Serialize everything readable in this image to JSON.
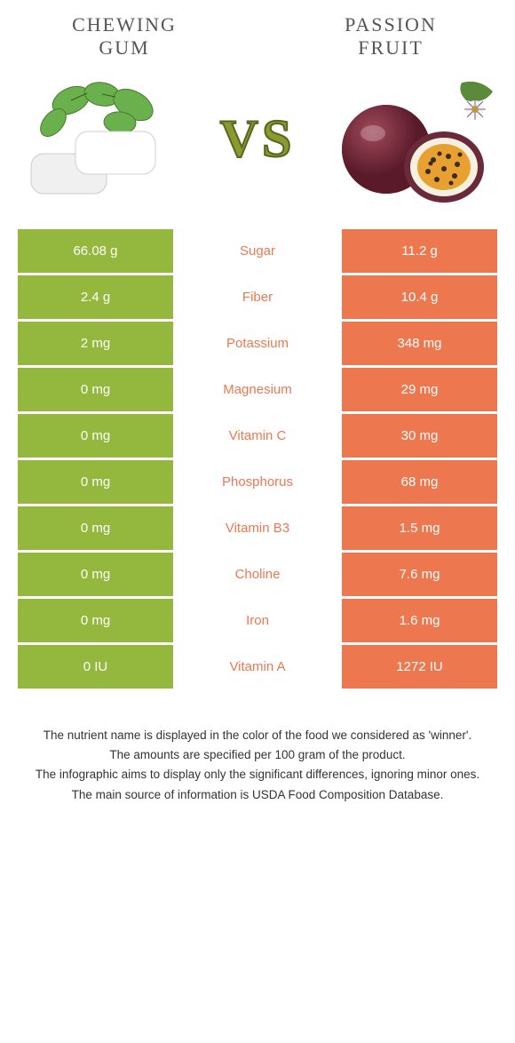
{
  "colors": {
    "left": "#94b83d",
    "right": "#ed7850",
    "vs_fill": "#8a9a2f",
    "vs_stroke": "#5a651f"
  },
  "food_left": {
    "title_line1": "CHEWING",
    "title_line2": "GUM"
  },
  "food_right": {
    "title_line1": "PASSION",
    "title_line2": "FRUIT"
  },
  "vs": "VS",
  "rows": [
    {
      "left": "66.08 g",
      "label": "Sugar",
      "right": "11.2 g",
      "winner": "right"
    },
    {
      "left": "2.4 g",
      "label": "Fiber",
      "right": "10.4 g",
      "winner": "right"
    },
    {
      "left": "2 mg",
      "label": "Potassium",
      "right": "348 mg",
      "winner": "right"
    },
    {
      "left": "0 mg",
      "label": "Magnesium",
      "right": "29 mg",
      "winner": "right"
    },
    {
      "left": "0 mg",
      "label": "Vitamin C",
      "right": "30 mg",
      "winner": "right"
    },
    {
      "left": "0 mg",
      "label": "Phosphorus",
      "right": "68 mg",
      "winner": "right"
    },
    {
      "left": "0 mg",
      "label": "Vitamin B3",
      "right": "1.5 mg",
      "winner": "right"
    },
    {
      "left": "0 mg",
      "label": "Choline",
      "right": "7.6 mg",
      "winner": "right"
    },
    {
      "left": "0 mg",
      "label": "Iron",
      "right": "1.6 mg",
      "winner": "right"
    },
    {
      "left": "0 IU",
      "label": "Vitamin A",
      "right": "1272 IU",
      "winner": "right"
    }
  ],
  "footer": {
    "l1": "The nutrient name is displayed in the color of the food we considered as 'winner'.",
    "l2": "The amounts are specified per 100 gram of the product.",
    "l3": "The infographic aims to display only the significant differences, ignoring minor ones.",
    "l4": "The main source of information is USDA Food Composition Database."
  }
}
